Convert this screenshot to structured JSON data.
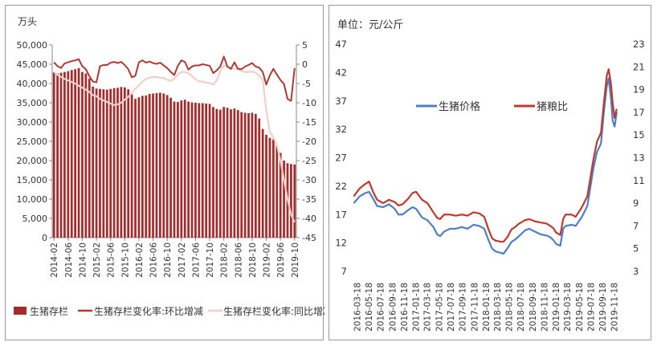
{
  "chart_data": [
    {
      "type": "bar+line",
      "unit_label": "万头",
      "y_left_ticks": [
        "50,000",
        "45,000",
        "40,000",
        "35,000",
        "30,000",
        "25,000",
        "20,000",
        "15,000",
        "10,000",
        "5,000",
        "0"
      ],
      "y_right_ticks": [
        "5",
        "0",
        "-5",
        "-10",
        "-15",
        "-20",
        "-25",
        "-30",
        "-35",
        "-40",
        "-45"
      ],
      "y_left_range": [
        0,
        50000
      ],
      "y_right_range": [
        -45,
        5
      ],
      "x_tick_labels": [
        "2014-02",
        "2014-06",
        "2014-10",
        "2015-02",
        "2015-06",
        "2015-10",
        "2016-02",
        "2016-06",
        "2016-10",
        "2017-02",
        "2017-06",
        "2017-10",
        "2018-02",
        "2018-06",
        "2018-10",
        "2019-02",
        "2019-06",
        "2019-10"
      ],
      "months": [
        "2014-02",
        "2014-03",
        "2014-04",
        "2014-05",
        "2014-06",
        "2014-07",
        "2014-08",
        "2014-09",
        "2014-10",
        "2014-11",
        "2014-12",
        "2015-01",
        "2015-02",
        "2015-03",
        "2015-04",
        "2015-05",
        "2015-06",
        "2015-07",
        "2015-08",
        "2015-09",
        "2015-10",
        "2015-11",
        "2015-12",
        "2016-01",
        "2016-02",
        "2016-03",
        "2016-04",
        "2016-05",
        "2016-06",
        "2016-07",
        "2016-08",
        "2016-09",
        "2016-10",
        "2016-11",
        "2016-12",
        "2017-01",
        "2017-02",
        "2017-03",
        "2017-04",
        "2017-05",
        "2017-06",
        "2017-07",
        "2017-08",
        "2017-09",
        "2017-10",
        "2017-11",
        "2017-12",
        "2018-01",
        "2018-02",
        "2018-03",
        "2018-04",
        "2018-05",
        "2018-06",
        "2018-07",
        "2018-08",
        "2018-09",
        "2018-10",
        "2018-11",
        "2018-12",
        "2019-01",
        "2019-02",
        "2019-03",
        "2019-04",
        "2019-05",
        "2019-06",
        "2019-07",
        "2019-08",
        "2019-09",
        "2019-10"
      ],
      "legend": [
        "生猪存栏",
        "生猪存栏变化率:环比增减",
        "生猪存栏变化率:同比增减"
      ],
      "series": [
        {
          "name": "生猪存栏",
          "axis": "left",
          "color": "#a52a2a",
          "values": [
            42900,
            42600,
            42800,
            43000,
            43200,
            43500,
            43700,
            44000,
            43000,
            42600,
            41300,
            39200,
            38700,
            38600,
            38500,
            38400,
            38600,
            38800,
            38900,
            39100,
            39000,
            38500,
            37200,
            36000,
            36400,
            36800,
            36900,
            37300,
            37400,
            37500,
            37600,
            37400,
            37000,
            36300,
            35300,
            35200,
            35600,
            35800,
            35300,
            35100,
            35000,
            34900,
            34900,
            34800,
            34700,
            33900,
            33400,
            33200,
            33900,
            33700,
            33300,
            33500,
            33100,
            32600,
            32400,
            32300,
            32400,
            32100,
            30900,
            28200,
            26700,
            25900,
            25500,
            23800,
            22000,
            20000,
            19300,
            19100,
            19000
          ]
        },
        {
          "name": "生猪存栏变化率:环比增减",
          "axis": "right",
          "color": "#b03a32",
          "values": [
            0.5,
            -0.5,
            -1.0,
            0.2,
            0.5,
            0.8,
            1.0,
            1.3,
            -0.5,
            -1.3,
            -3.1,
            -4.5,
            -4.7,
            -0.5,
            -0.2,
            -0.2,
            0.4,
            0.6,
            0.3,
            0.6,
            -0.2,
            -1.3,
            -3.4,
            -3.0,
            0.5,
            1.0,
            0.4,
            0.7,
            0.3,
            0.1,
            0.4,
            -0.3,
            -1.0,
            -2.0,
            -2.8,
            -0.4,
            1.0,
            0.6,
            -1.4,
            -0.6,
            -0.3,
            -0.3,
            0.0,
            -0.2,
            -0.4,
            -2.3,
            -1.6,
            -0.6,
            2.0,
            -0.6,
            -1.2,
            0.5,
            -1.2,
            -1.3,
            -0.6,
            -0.2,
            0.3,
            -0.6,
            -0.9,
            -2.0,
            -5.3,
            -2.9,
            -1.2,
            -2.7,
            -4.1,
            -5.1,
            -9.0,
            -9.5,
            -1.0
          ]
        },
        {
          "name": "生猪存栏变化率:同比增减",
          "axis": "right",
          "color": "#f2cfc8",
          "values": [
            -2.0,
            -2.8,
            -3.3,
            -3.8,
            -4.2,
            -4.6,
            -5.0,
            -5.6,
            -6.1,
            -6.6,
            -7.2,
            -8.0,
            -8.3,
            -9.0,
            -9.4,
            -9.8,
            -10.2,
            -10.6,
            -10.4,
            -10.0,
            -9.2,
            -8.5,
            -7.5,
            -6.3,
            -5.5,
            -4.5,
            -3.8,
            -3.5,
            -3.3,
            -3.3,
            -3.5,
            -3.6,
            -4.0,
            -4.3,
            -3.8,
            -2.7,
            -2.0,
            -2.0,
            -2.3,
            -3.1,
            -3.9,
            -4.5,
            -4.5,
            -4.8,
            -4.9,
            -5.3,
            -4.2,
            -1.8,
            -0.3,
            -0.6,
            -1.2,
            -1.1,
            -1.3,
            -1.8,
            -2.0,
            -2.0,
            -1.9,
            -2.2,
            -3.0,
            -4.0,
            -12.0,
            -17.5,
            -19.0,
            -21.0,
            -25.0,
            -30.0,
            -35.0,
            -39.0,
            -41.0
          ]
        }
      ]
    },
    {
      "type": "line",
      "unit_label": "单位：元/公斤",
      "y_left_ticks": [
        "47",
        "42",
        "37",
        "32",
        "27",
        "22",
        "17",
        "12",
        "7"
      ],
      "y_right_ticks": [
        "23",
        "21",
        "19",
        "17",
        "15",
        "13",
        "11",
        "9",
        "7",
        "5",
        "3"
      ],
      "y_left_range": [
        7,
        47
      ],
      "y_right_range": [
        3,
        23
      ],
      "x_tick_labels": [
        "2016-03-18",
        "2016-05-18",
        "2016-07-18",
        "2016-09-18",
        "2016-11-18",
        "2017-01-18",
        "2017-03-18",
        "2017-05-18",
        "2017-07-18",
        "2017-09-18",
        "2017-11-18",
        "2018-01-18",
        "2018-03-18",
        "2018-05-18",
        "2018-07-18",
        "2018-09-18",
        "2018-11-18",
        "2019-01-18",
        "2019-03-18",
        "2019-05-18",
        "2019-07-18",
        "2019-09-18",
        "2019-11-18"
      ],
      "legend": [
        "生猪价格",
        "猪粮比"
      ],
      "series": [
        {
          "name": "生猪价格",
          "axis": "left",
          "color": "#4e7fc6",
          "points": [
            [
              "2016-03-01",
              19.0
            ],
            [
              "2016-04-01",
              20.2
            ],
            [
              "2016-05-01",
              20.8
            ],
            [
              "2016-05-20",
              21.0
            ],
            [
              "2016-06-10",
              19.8
            ],
            [
              "2016-07-01",
              18.5
            ],
            [
              "2016-08-01",
              18.3
            ],
            [
              "2016-09-01",
              18.8
            ],
            [
              "2016-10-01",
              18.0
            ],
            [
              "2016-10-20",
              17.0
            ],
            [
              "2016-11-10",
              17.0
            ],
            [
              "2016-12-10",
              17.8
            ],
            [
              "2017-01-01",
              18.3
            ],
            [
              "2017-01-20",
              18.0
            ],
            [
              "2017-02-20",
              16.5
            ],
            [
              "2017-03-20",
              16.0
            ],
            [
              "2017-04-20",
              14.8
            ],
            [
              "2017-05-10",
              13.5
            ],
            [
              "2017-05-25",
              13.2
            ],
            [
              "2017-06-15",
              14.0
            ],
            [
              "2017-07-15",
              14.5
            ],
            [
              "2017-08-15",
              14.5
            ],
            [
              "2017-09-15",
              14.8
            ],
            [
              "2017-10-15",
              14.5
            ],
            [
              "2017-11-15",
              15.2
            ],
            [
              "2017-12-15",
              15.0
            ],
            [
              "2018-01-10",
              14.5
            ],
            [
              "2018-02-01",
              12.5
            ],
            [
              "2018-02-20",
              11.0
            ],
            [
              "2018-03-10",
              10.5
            ],
            [
              "2018-04-10",
              10.2
            ],
            [
              "2018-04-20",
              10.1
            ],
            [
              "2018-05-10",
              11.0
            ],
            [
              "2018-06-01",
              12.2
            ],
            [
              "2018-06-20",
              12.6
            ],
            [
              "2018-07-10",
              13.2
            ],
            [
              "2018-08-10",
              14.2
            ],
            [
              "2018-09-01",
              14.5
            ],
            [
              "2018-10-01",
              14.0
            ],
            [
              "2018-11-01",
              13.5
            ],
            [
              "2018-12-01",
              13.3
            ],
            [
              "2018-12-20",
              13.0
            ],
            [
              "2019-01-05",
              12.5
            ],
            [
              "2019-01-20",
              11.8
            ],
            [
              "2019-02-10",
              11.5
            ],
            [
              "2019-02-25",
              14.5
            ],
            [
              "2019-03-10",
              15.0
            ],
            [
              "2019-04-10",
              15.2
            ],
            [
              "2019-05-01",
              15.0
            ],
            [
              "2019-06-01",
              16.5
            ],
            [
              "2019-07-01",
              18.5
            ],
            [
              "2019-08-01",
              25.0
            ],
            [
              "2019-08-20",
              28.0
            ],
            [
              "2019-09-10",
              29.5
            ],
            [
              "2019-09-25",
              35.0
            ],
            [
              "2019-10-10",
              39.5
            ],
            [
              "2019-10-20",
              41.0
            ],
            [
              "2019-11-01",
              37.5
            ],
            [
              "2019-11-10",
              33.5
            ],
            [
              "2019-11-20",
              32.5
            ],
            [
              "2019-12-01",
              35.0
            ]
          ]
        },
        {
          "name": "猪粮比",
          "axis": "right",
          "color": "#c0392b",
          "points": [
            [
              "2016-03-01",
              9.6
            ],
            [
              "2016-04-01",
              10.3
            ],
            [
              "2016-05-01",
              10.7
            ],
            [
              "2016-05-20",
              10.9
            ],
            [
              "2016-06-10",
              10.0
            ],
            [
              "2016-07-01",
              9.3
            ],
            [
              "2016-08-01",
              9.0
            ],
            [
              "2016-09-01",
              9.3
            ],
            [
              "2016-10-01",
              9.1
            ],
            [
              "2016-10-20",
              8.8
            ],
            [
              "2016-11-10",
              8.9
            ],
            [
              "2016-12-10",
              9.4
            ],
            [
              "2017-01-01",
              9.9
            ],
            [
              "2017-01-20",
              10.0
            ],
            [
              "2017-02-20",
              9.3
            ],
            [
              "2017-03-20",
              9.0
            ],
            [
              "2017-04-20",
              8.2
            ],
            [
              "2017-05-10",
              7.7
            ],
            [
              "2017-05-25",
              7.6
            ],
            [
              "2017-06-15",
              8.0
            ],
            [
              "2017-07-15",
              8.0
            ],
            [
              "2017-08-15",
              7.9
            ],
            [
              "2017-09-15",
              8.0
            ],
            [
              "2017-10-15",
              7.9
            ],
            [
              "2017-11-15",
              8.2
            ],
            [
              "2017-12-15",
              8.1
            ],
            [
              "2018-01-10",
              7.8
            ],
            [
              "2018-02-01",
              6.7
            ],
            [
              "2018-02-20",
              5.9
            ],
            [
              "2018-03-10",
              5.7
            ],
            [
              "2018-04-10",
              5.6
            ],
            [
              "2018-04-20",
              5.6
            ],
            [
              "2018-05-10",
              6.0
            ],
            [
              "2018-06-01",
              6.7
            ],
            [
              "2018-06-20",
              6.9
            ],
            [
              "2018-07-10",
              7.2
            ],
            [
              "2018-08-10",
              7.5
            ],
            [
              "2018-09-01",
              7.6
            ],
            [
              "2018-10-01",
              7.4
            ],
            [
              "2018-11-01",
              7.3
            ],
            [
              "2018-12-01",
              7.2
            ],
            [
              "2018-12-20",
              7.0
            ],
            [
              "2019-01-05",
              6.8
            ],
            [
              "2019-01-20",
              6.4
            ],
            [
              "2019-02-10",
              6.2
            ],
            [
              "2019-02-25",
              7.6
            ],
            [
              "2019-03-10",
              8.0
            ],
            [
              "2019-04-10",
              8.0
            ],
            [
              "2019-05-01",
              7.8
            ],
            [
              "2019-06-01",
              8.6
            ],
            [
              "2019-07-01",
              9.6
            ],
            [
              "2019-08-01",
              12.8
            ],
            [
              "2019-08-20",
              14.4
            ],
            [
              "2019-09-10",
              15.2
            ],
            [
              "2019-09-25",
              17.8
            ],
            [
              "2019-10-10",
              20.2
            ],
            [
              "2019-10-20",
              20.8
            ],
            [
              "2019-11-01",
              19.5
            ],
            [
              "2019-11-10",
              17.8
            ],
            [
              "2019-11-20",
              16.5
            ],
            [
              "2019-12-01",
              17.3
            ]
          ]
        }
      ]
    }
  ]
}
